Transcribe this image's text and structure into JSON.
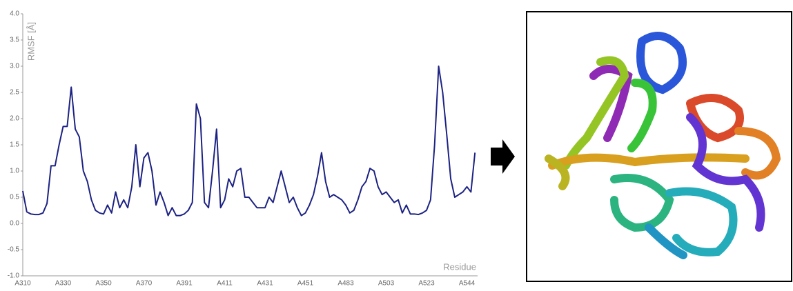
{
  "chart_data": {
    "type": "line",
    "ylabel": "RMSF [Å]",
    "xlabel": "Residue",
    "categories": [
      "A310",
      null,
      null,
      null,
      null,
      null,
      null,
      null,
      null,
      null,
      "A330",
      null,
      null,
      null,
      null,
      null,
      null,
      null,
      null,
      null,
      "A350",
      null,
      null,
      null,
      null,
      null,
      null,
      null,
      null,
      null,
      "A370",
      null,
      null,
      null,
      null,
      null,
      null,
      null,
      null,
      null,
      "A391",
      null,
      null,
      null,
      null,
      null,
      null,
      null,
      null,
      null,
      "A411",
      null,
      null,
      null,
      null,
      null,
      null,
      null,
      null,
      null,
      "A431",
      null,
      null,
      null,
      null,
      null,
      null,
      null,
      null,
      null,
      "A451",
      null,
      null,
      null,
      null,
      null,
      null,
      null,
      null,
      null,
      "A483",
      null,
      null,
      null,
      null,
      null,
      null,
      null,
      null,
      null,
      "A503",
      null,
      null,
      null,
      null,
      null,
      null,
      null,
      null,
      null,
      "A523",
      null,
      null,
      null,
      null,
      null,
      null,
      null,
      null,
      null,
      "A544",
      null,
      null
    ],
    "values": [
      0.62,
      0.22,
      0.18,
      0.17,
      0.17,
      0.2,
      0.38,
      1.1,
      1.1,
      1.5,
      1.85,
      1.85,
      2.6,
      1.8,
      1.65,
      1.0,
      0.8,
      0.45,
      0.25,
      0.2,
      0.18,
      0.35,
      0.2,
      0.6,
      0.3,
      0.45,
      0.3,
      0.7,
      1.5,
      0.7,
      1.25,
      1.35,
      1.0,
      0.35,
      0.6,
      0.4,
      0.15,
      0.3,
      0.15,
      0.15,
      0.18,
      0.25,
      0.4,
      2.28,
      2.0,
      0.4,
      0.3,
      1.0,
      1.8,
      0.3,
      0.45,
      0.85,
      0.7,
      1.0,
      1.05,
      0.5,
      0.5,
      0.4,
      0.3,
      0.3,
      0.3,
      0.5,
      0.4,
      0.7,
      1.0,
      0.7,
      0.4,
      0.5,
      0.3,
      0.15,
      0.2,
      0.35,
      0.55,
      0.9,
      1.35,
      0.8,
      0.5,
      0.55,
      0.5,
      0.45,
      0.35,
      0.2,
      0.25,
      0.45,
      0.7,
      0.8,
      1.05,
      1.0,
      0.7,
      0.55,
      0.6,
      0.5,
      0.4,
      0.45,
      0.2,
      0.35,
      0.18,
      0.18,
      0.17,
      0.2,
      0.25,
      0.45,
      1.5,
      3.0,
      2.5,
      1.7,
      0.85,
      0.5,
      0.55,
      0.6,
      0.7,
      0.6,
      1.35
    ],
    "color": "#1c2283",
    "ylim": [
      -1,
      4
    ],
    "yticks": [
      {
        "value": -1,
        "label": "-1.0"
      },
      -0.5,
      {
        "value": 0,
        "label": "0.0"
      },
      0.5,
      {
        "value": 1,
        "label": "1.0"
      },
      1.5,
      {
        "value": 2,
        "label": "2.0"
      },
      2.5,
      {
        "value": 3,
        "label": "3.0"
      },
      3.5,
      {
        "value": 4,
        "label": "4.0"
      }
    ],
    "grid": false
  }
}
